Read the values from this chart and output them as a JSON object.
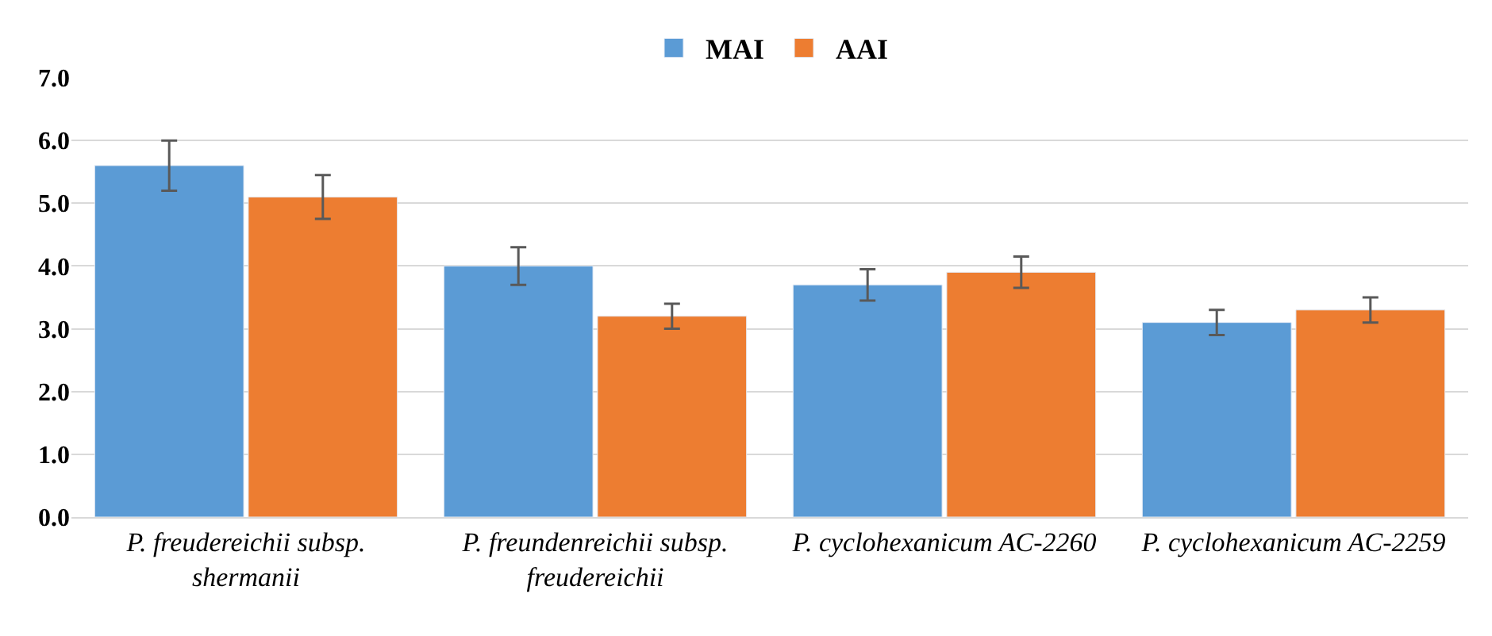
{
  "chart_data": {
    "type": "bar",
    "categories": [
      "P. freudereichii subsp. shermanii",
      "P. freundenreichii subsp. freudereichii",
      "P. cyclohexanicum AC-2260",
      "P. cyclohexanicum AC-2259"
    ],
    "series": [
      {
        "name": "MAI",
        "color": "#5b9bd5",
        "values": [
          5.6,
          4.0,
          3.7,
          3.1
        ],
        "errors": [
          0.4,
          0.3,
          0.25,
          0.2
        ]
      },
      {
        "name": "AAI",
        "color": "#ed7d31",
        "values": [
          5.1,
          3.2,
          3.9,
          3.3
        ],
        "errors": [
          0.35,
          0.2,
          0.25,
          0.2
        ]
      }
    ],
    "ylim": [
      0,
      7
    ],
    "yticks": [
      {
        "value": 0,
        "label": "0.0"
      },
      {
        "value": 1,
        "label": "1.0"
      },
      {
        "value": 2,
        "label": "2.0"
      },
      {
        "value": 3,
        "label": "3.0"
      },
      {
        "value": 4,
        "label": "4.0"
      },
      {
        "value": 5,
        "label": "5.0"
      },
      {
        "value": 6,
        "label": "6.0"
      },
      {
        "value": 7,
        "label": "7.0"
      }
    ],
    "grid": "y",
    "legend": "top"
  }
}
